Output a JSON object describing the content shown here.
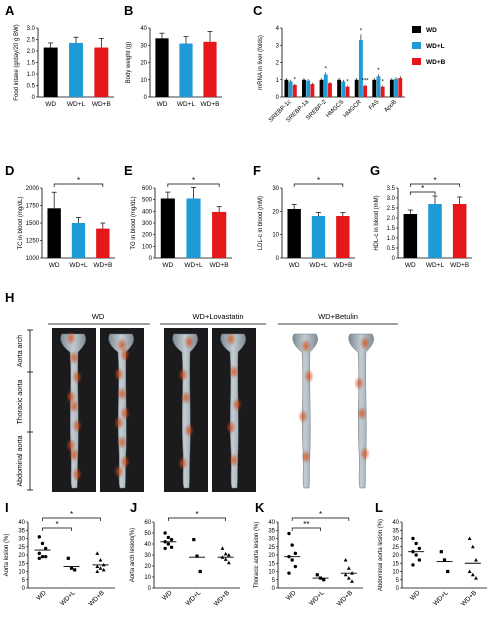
{
  "panel_letters": [
    "A",
    "B",
    "C",
    "D",
    "E",
    "F",
    "G",
    "H",
    "I",
    "J",
    "K",
    "L"
  ],
  "groups": [
    "WD",
    "WD+L",
    "WD+B"
  ],
  "colors": {
    "WD": "#000000",
    "WD+L": "#1e9ad6",
    "WD+B": "#e5171b"
  },
  "legend": {
    "items": [
      "WD",
      "WD+L",
      "WD+B"
    ]
  },
  "panel_h": {
    "group_headers": [
      "WD",
      "WD+Lovastatin",
      "WD+Betulin"
    ],
    "region_labels": [
      "Aorta arch",
      "Thoracic aorta",
      "Abdominal aorta"
    ]
  },
  "chart_data": [
    {
      "id": "A",
      "type": "bar",
      "categories": [
        "WD",
        "WD+L",
        "WD+B"
      ],
      "values": [
        2.15,
        2.35,
        2.15
      ],
      "errors": [
        0.2,
        0.25,
        0.4
      ],
      "ylabel": "Food intake (g/day/20 g BW)",
      "ylim": [
        0,
        3.0
      ],
      "yticks": [
        "0",
        "0.5",
        "1.0",
        "1.5",
        "2.0",
        "2.5",
        "3.0"
      ]
    },
    {
      "id": "B",
      "type": "bar",
      "categories": [
        "WD",
        "WD+L",
        "WD+B"
      ],
      "values": [
        34,
        31,
        32
      ],
      "errors": [
        3,
        4,
        6
      ],
      "ylabel": "Body weight (g)",
      "ylim": [
        0,
        40
      ],
      "yticks": [
        "0",
        "10",
        "20",
        "30",
        "40"
      ]
    },
    {
      "id": "C",
      "type": "bar",
      "categories": [
        "SREBP-1c",
        "SREBP-1a",
        "SREBP-2",
        "HMGCS",
        "HMGCR",
        "FAS",
        "ApoB"
      ],
      "series": [
        {
          "name": "WD",
          "values": [
            1,
            1,
            1,
            1,
            1,
            1,
            1
          ]
        },
        {
          "name": "WD+L",
          "values": [
            0.9,
            0.95,
            1.3,
            0.9,
            3.3,
            1.2,
            1.05
          ]
        },
        {
          "name": "WD+B",
          "values": [
            0.7,
            0.75,
            0.8,
            0.6,
            0.65,
            0.6,
            1.1
          ]
        }
      ],
      "ylabel": "mRNA in liver (folds)",
      "ylim": [
        0,
        4
      ],
      "yticks": [
        "0",
        "1",
        "2",
        "3",
        "4"
      ],
      "annotations": [
        "*",
        "*",
        "*",
        "*",
        "***",
        "*",
        "*",
        "*",
        "***"
      ]
    },
    {
      "id": "D",
      "type": "bar",
      "categories": [
        "WD",
        "WD+L",
        "WD+B"
      ],
      "values": [
        1710,
        1500,
        1420
      ],
      "errors": [
        230,
        80,
        80
      ],
      "ylabel": "TC in blood (mg/dL)",
      "ylim": [
        1000,
        2000
      ],
      "yticks": [
        "1000",
        "1250",
        "1500",
        "1750",
        "2000"
      ],
      "significance": [
        "*"
      ]
    },
    {
      "id": "E",
      "type": "bar",
      "categories": [
        "WD",
        "WD+L",
        "WD+B"
      ],
      "values": [
        510,
        510,
        395
      ],
      "errors": [
        55,
        95,
        45
      ],
      "ylabel": "TG in blood (mg/dL)",
      "ylim": [
        0,
        600
      ],
      "yticks": [
        "0",
        "100",
        "200",
        "300",
        "400",
        "500",
        "600"
      ],
      "significance": [
        "*"
      ]
    },
    {
      "id": "F",
      "type": "bar",
      "categories": [
        "WD",
        "WD+L",
        "WD+B"
      ],
      "values": [
        21,
        18,
        18
      ],
      "errors": [
        2,
        1.5,
        1.5
      ],
      "ylabel": "LDL-c in blood (mM)",
      "ylim": [
        0,
        30
      ],
      "yticks": [
        "0",
        "10",
        "20",
        "30"
      ],
      "significance": [
        "*"
      ]
    },
    {
      "id": "G",
      "type": "bar",
      "categories": [
        "WD",
        "WD+L",
        "WD+B"
      ],
      "values": [
        2.2,
        2.7,
        2.7
      ],
      "errors": [
        0.2,
        0.4,
        0.35
      ],
      "ylabel": "HDL-c in blood (mM)",
      "ylim": [
        0,
        3.5
      ],
      "yticks": [
        "0",
        "0.5",
        "1.0",
        "1.5",
        "2.0",
        "2.5",
        "3.0",
        "3.5"
      ],
      "significance": [
        "*",
        "*"
      ]
    },
    {
      "id": "I",
      "type": "scatter",
      "categories": [
        "WD",
        "WD+L",
        "WD+B"
      ],
      "points": [
        [
          31,
          27,
          24,
          21,
          19,
          19,
          18
        ],
        [
          18,
          12,
          11
        ],
        [
          21,
          17,
          14,
          13,
          12,
          11,
          10
        ]
      ],
      "means": [
        23,
        13,
        14
      ],
      "ylabel": "Aorta lesion (%)",
      "ylim": [
        0,
        40
      ],
      "yticks": [
        "0",
        "5",
        "10",
        "15",
        "20",
        "25",
        "30",
        "35",
        "40"
      ],
      "significance": [
        "*",
        "*"
      ]
    },
    {
      "id": "J",
      "type": "scatter",
      "categories": [
        "WD",
        "WD+L",
        "WD+B"
      ],
      "points": [
        [
          50,
          46,
          44,
          42,
          40,
          37,
          36
        ],
        [
          44,
          29,
          15
        ],
        [
          36,
          31,
          30,
          28,
          26,
          23
        ]
      ],
      "means": [
        42,
        28,
        28
      ],
      "ylabel": "Aorta arch lesion(%)",
      "ylim": [
        0,
        60
      ],
      "yticks": [
        "0",
        "10",
        "20",
        "30",
        "40",
        "50",
        "60"
      ],
      "significance": [
        "*"
      ]
    },
    {
      "id": "K",
      "type": "scatter",
      "categories": [
        "WD",
        "WD+L",
        "WD+B"
      ],
      "points": [
        [
          33,
          26,
          21,
          19,
          17,
          13,
          9
        ],
        [
          8,
          6,
          5
        ],
        [
          17,
          12,
          9,
          8,
          6,
          4
        ]
      ],
      "means": [
        19,
        6,
        9
      ],
      "ylabel": "Thoracic aorta lesion (%)",
      "ylim": [
        0,
        40
      ],
      "yticks": [
        "0",
        "5",
        "10",
        "15",
        "20",
        "25",
        "30",
        "35",
        "40"
      ],
      "significance": [
        "**",
        "*"
      ]
    },
    {
      "id": "L",
      "type": "scatter",
      "categories": [
        "WD",
        "WD+L",
        "WD+B"
      ],
      "points": [
        [
          30,
          27,
          24,
          22,
          20,
          17,
          14
        ],
        [
          22,
          17,
          10
        ],
        [
          30,
          25,
          17,
          10,
          8,
          6
        ]
      ],
      "means": [
        22,
        16,
        15
      ],
      "ylabel": "Abdominal aorta lesion (%)",
      "ylim": [
        0,
        40
      ],
      "yticks": [
        "0",
        "5",
        "10",
        "15",
        "20",
        "25",
        "30",
        "35",
        "40"
      ],
      "significance": []
    }
  ]
}
